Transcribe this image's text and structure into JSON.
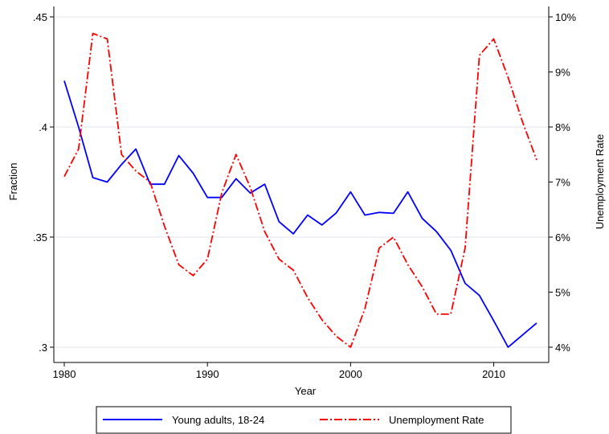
{
  "chart_data": {
    "type": "line",
    "xlabel": "Year",
    "ylabel_left": "Fraction",
    "ylabel_right": "Unemployment Rate",
    "xlim": [
      1980,
      2013
    ],
    "ylim_left": [
      0.3,
      0.45
    ],
    "ylim_right": [
      4,
      10
    ],
    "x_ticks": [
      1980,
      1990,
      2000,
      2010
    ],
    "x_tick_labels": [
      "1980",
      "1990",
      "2000",
      "2010"
    ],
    "y_left_ticks": [
      0.3,
      0.35,
      0.4,
      0.45
    ],
    "y_left_tick_labels": [
      ".3",
      ".35",
      ".4",
      ".45"
    ],
    "y_right_ticks": [
      4,
      5,
      6,
      7,
      8,
      9,
      10
    ],
    "y_right_tick_labels": [
      "4%",
      "5%",
      "6%",
      "7%",
      "8%",
      "9%",
      "10%"
    ],
    "grid": true,
    "legend_position": "bottom",
    "x": [
      1980,
      1981,
      1982,
      1983,
      1984,
      1985,
      1986,
      1987,
      1988,
      1989,
      1990,
      1991,
      1992,
      1993,
      1994,
      1995,
      1996,
      1997,
      1998,
      1999,
      2000,
      2001,
      2002,
      2003,
      2004,
      2005,
      2006,
      2007,
      2008,
      2009,
      2010,
      2011,
      2012,
      2013
    ],
    "series": [
      {
        "name": "Young adults, 18-24",
        "axis": "left",
        "color": "#0000ff",
        "style": "solid",
        "values": [
          0.421,
          0.4,
          0.377,
          0.375,
          0.383,
          0.39,
          0.374,
          0.374,
          0.387,
          0.379,
          0.368,
          0.368,
          0.3765,
          0.37,
          0.374,
          0.357,
          0.3515,
          0.36,
          0.3555,
          0.361,
          0.3705,
          0.36,
          0.3612,
          0.3608,
          0.3705,
          0.3585,
          0.3525,
          0.344,
          0.329,
          0.3235,
          0.312,
          0.3,
          0.3055,
          0.311
        ]
      },
      {
        "name": "Unemployment Rate",
        "axis": "right",
        "color": "#ff0000",
        "style": "dash-dot",
        "values": [
          7.1,
          7.6,
          9.7,
          9.6,
          7.5,
          7.2,
          7.0,
          6.2,
          5.5,
          5.3,
          5.6,
          6.8,
          7.5,
          6.9,
          6.1,
          5.6,
          5.4,
          4.9,
          4.5,
          4.2,
          4.0,
          4.7,
          5.8,
          6.0,
          5.5,
          5.1,
          4.6,
          4.6,
          5.8,
          9.3,
          9.6,
          8.9,
          8.1,
          7.4
        ]
      }
    ]
  }
}
